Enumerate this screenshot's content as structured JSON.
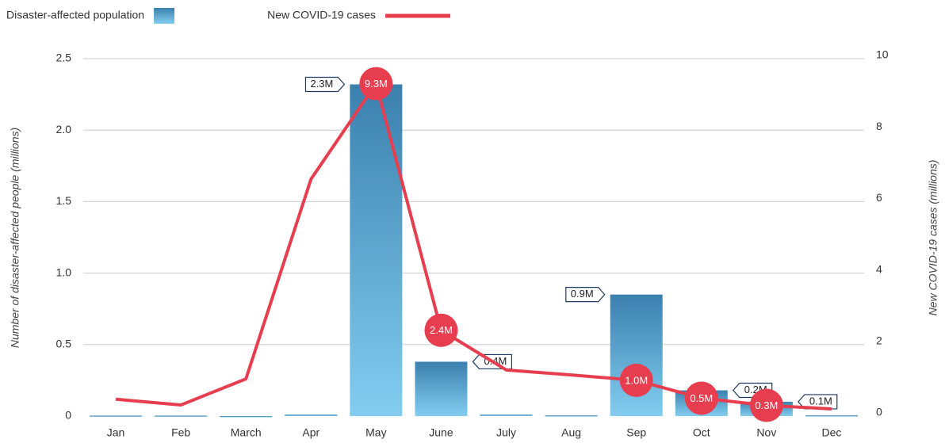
{
  "chart_data": {
    "type": "bar",
    "categories": [
      "Jan",
      "Feb",
      "March",
      "Apr",
      "May",
      "June",
      "July",
      "Aug",
      "Sep",
      "Oct",
      "Nov",
      "Dec"
    ],
    "series": [
      {
        "name": "Disaster-affected population",
        "type": "bar",
        "color": "#4a9ccc",
        "values": [
          0.003,
          0.003,
          0,
          0.01,
          2.32,
          0.38,
          0.01,
          0.005,
          0.85,
          0.18,
          0.1,
          0.005
        ],
        "value_labels": [
          null,
          null,
          null,
          null,
          "2.3M",
          "0.4M",
          null,
          null,
          "0.9M",
          "0.2M",
          "0.1M",
          null
        ]
      },
      {
        "name": "New COVID-19 cases",
        "type": "line",
        "axis": "y2",
        "color": "#e63e4f",
        "values": [
          0.47,
          0.31,
          1.04,
          6.63,
          9.3,
          2.4,
          1.29,
          1.15,
          1.0,
          0.5,
          0.3,
          0.2
        ],
        "value_labels": [
          null,
          null,
          null,
          null,
          "9.3M",
          "2.4M",
          null,
          null,
          "1.0M",
          "0.5M",
          "0.3M",
          null
        ]
      }
    ],
    "ylabel": "Number of disaster-affected people (millions)",
    "y2label": "New COVID-19 cases (millions)",
    "ylim": [
      0,
      2.5
    ],
    "yticks": [
      0,
      0.5,
      {
        "value": 1,
        "label": "1.0"
      },
      1.5,
      {
        "value": 2,
        "label": "2.0"
      },
      2.5
    ],
    "y2lim": [
      0,
      10
    ],
    "y2ticks": [
      0,
      2,
      4,
      6,
      8,
      10
    ],
    "grid": true
  }
}
